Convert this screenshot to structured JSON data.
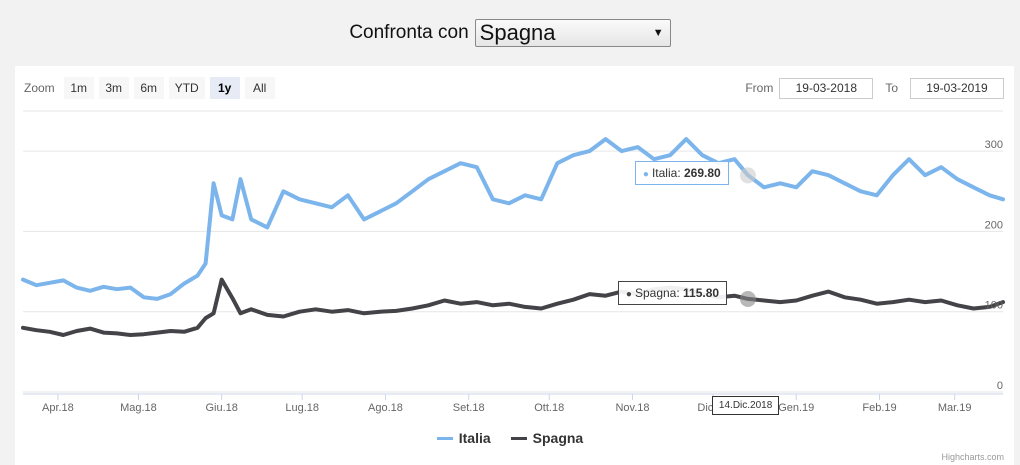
{
  "compare": {
    "label": "Confronta con",
    "selected": "Spagna"
  },
  "zoom": {
    "label": "Zoom",
    "buttons": [
      "1m",
      "3m",
      "6m",
      "YTD",
      "1y",
      "All"
    ],
    "active": "1y"
  },
  "range": {
    "from_label": "From",
    "from_value": "19-03-2018",
    "to_label": "To",
    "to_value": "19-03-2019"
  },
  "colors": {
    "italia": "#7cb5ec",
    "spagna": "#434348",
    "grid": "#e6e6e6",
    "axis": "#ccd6eb"
  },
  "tooltip": {
    "italia": {
      "name": "Italia",
      "value": "269.80"
    },
    "spagna": {
      "name": "Spagna",
      "value": "115.80"
    },
    "date": "14.Dic.2018",
    "date_x": "2018-12-14"
  },
  "credits": "Highcharts.com",
  "chart_data": {
    "type": "line",
    "x_start": "2018-03-19",
    "x_end": "2019-03-19",
    "ylim": [
      0,
      350
    ],
    "y_ticks": [
      0,
      100,
      200,
      300
    ],
    "x_ticks": [
      {
        "label": "Apr.18",
        "date": "2018-04-01"
      },
      {
        "label": "Mag.18",
        "date": "2018-05-01"
      },
      {
        "label": "Giu.18",
        "date": "2018-06-01"
      },
      {
        "label": "Lug.18",
        "date": "2018-07-01"
      },
      {
        "label": "Ago.18",
        "date": "2018-08-01"
      },
      {
        "label": "Set.18",
        "date": "2018-09-01"
      },
      {
        "label": "Ott.18",
        "date": "2018-10-01"
      },
      {
        "label": "Nov.18",
        "date": "2018-11-01"
      },
      {
        "label": "Dic.18",
        "date": "2018-12-01"
      },
      {
        "label": "Gen.19",
        "date": "2019-01-01"
      },
      {
        "label": "Feb.19",
        "date": "2019-02-01"
      },
      {
        "label": "Mar.19",
        "date": "2019-03-01"
      }
    ],
    "grid": true,
    "legend": "bottom-center",
    "series": [
      {
        "name": "Italia",
        "points": [
          [
            "2018-03-19",
            140
          ],
          [
            "2018-03-24",
            133
          ],
          [
            "2018-03-29",
            136
          ],
          [
            "2018-04-03",
            139
          ],
          [
            "2018-04-08",
            130
          ],
          [
            "2018-04-13",
            126
          ],
          [
            "2018-04-18",
            131
          ],
          [
            "2018-04-23",
            128
          ],
          [
            "2018-04-28",
            130
          ],
          [
            "2018-05-03",
            118
          ],
          [
            "2018-05-08",
            116
          ],
          [
            "2018-05-13",
            122
          ],
          [
            "2018-05-18",
            135
          ],
          [
            "2018-05-23",
            145
          ],
          [
            "2018-05-26",
            160
          ],
          [
            "2018-05-29",
            260
          ],
          [
            "2018-06-01",
            220
          ],
          [
            "2018-06-05",
            215
          ],
          [
            "2018-06-08",
            265
          ],
          [
            "2018-06-12",
            215
          ],
          [
            "2018-06-18",
            205
          ],
          [
            "2018-06-24",
            250
          ],
          [
            "2018-06-30",
            240
          ],
          [
            "2018-07-06",
            235
          ],
          [
            "2018-07-12",
            230
          ],
          [
            "2018-07-18",
            245
          ],
          [
            "2018-07-24",
            215
          ],
          [
            "2018-07-30",
            225
          ],
          [
            "2018-08-05",
            235
          ],
          [
            "2018-08-11",
            250
          ],
          [
            "2018-08-17",
            265
          ],
          [
            "2018-08-23",
            275
          ],
          [
            "2018-08-29",
            285
          ],
          [
            "2018-09-04",
            280
          ],
          [
            "2018-09-10",
            240
          ],
          [
            "2018-09-16",
            235
          ],
          [
            "2018-09-22",
            245
          ],
          [
            "2018-09-28",
            240
          ],
          [
            "2018-10-04",
            285
          ],
          [
            "2018-10-10",
            295
          ],
          [
            "2018-10-16",
            300
          ],
          [
            "2018-10-22",
            315
          ],
          [
            "2018-10-28",
            300
          ],
          [
            "2018-11-03",
            305
          ],
          [
            "2018-11-09",
            290
          ],
          [
            "2018-11-15",
            295
          ],
          [
            "2018-11-21",
            315
          ],
          [
            "2018-11-27",
            295
          ],
          [
            "2018-12-03",
            285
          ],
          [
            "2018-12-09",
            290
          ],
          [
            "2018-12-14",
            270
          ],
          [
            "2018-12-20",
            255
          ],
          [
            "2018-12-26",
            260
          ],
          [
            "2019-01-01",
            255
          ],
          [
            "2019-01-07",
            275
          ],
          [
            "2019-01-13",
            270
          ],
          [
            "2019-01-19",
            260
          ],
          [
            "2019-01-25",
            250
          ],
          [
            "2019-01-31",
            245
          ],
          [
            "2019-02-06",
            270
          ],
          [
            "2019-02-12",
            290
          ],
          [
            "2019-02-18",
            270
          ],
          [
            "2019-02-24",
            280
          ],
          [
            "2019-03-02",
            265
          ],
          [
            "2019-03-08",
            255
          ],
          [
            "2019-03-14",
            245
          ],
          [
            "2019-03-19",
            240
          ]
        ]
      },
      {
        "name": "Spagna",
        "points": [
          [
            "2018-03-19",
            80
          ],
          [
            "2018-03-24",
            77
          ],
          [
            "2018-03-29",
            75
          ],
          [
            "2018-04-03",
            71
          ],
          [
            "2018-04-08",
            76
          ],
          [
            "2018-04-13",
            79
          ],
          [
            "2018-04-18",
            74
          ],
          [
            "2018-04-23",
            73
          ],
          [
            "2018-04-28",
            71
          ],
          [
            "2018-05-03",
            72
          ],
          [
            "2018-05-08",
            74
          ],
          [
            "2018-05-13",
            76
          ],
          [
            "2018-05-18",
            75
          ],
          [
            "2018-05-23",
            80
          ],
          [
            "2018-05-26",
            92
          ],
          [
            "2018-05-29",
            98
          ],
          [
            "2018-06-01",
            140
          ],
          [
            "2018-06-05",
            117
          ],
          [
            "2018-06-08",
            98
          ],
          [
            "2018-06-12",
            103
          ],
          [
            "2018-06-18",
            96
          ],
          [
            "2018-06-24",
            94
          ],
          [
            "2018-06-30",
            100
          ],
          [
            "2018-07-06",
            103
          ],
          [
            "2018-07-12",
            100
          ],
          [
            "2018-07-18",
            102
          ],
          [
            "2018-07-24",
            98
          ],
          [
            "2018-07-30",
            100
          ],
          [
            "2018-08-05",
            101
          ],
          [
            "2018-08-11",
            104
          ],
          [
            "2018-08-17",
            108
          ],
          [
            "2018-08-23",
            114
          ],
          [
            "2018-08-29",
            110
          ],
          [
            "2018-09-04",
            112
          ],
          [
            "2018-09-10",
            108
          ],
          [
            "2018-09-16",
            110
          ],
          [
            "2018-09-22",
            106
          ],
          [
            "2018-09-28",
            104
          ],
          [
            "2018-10-04",
            110
          ],
          [
            "2018-10-10",
            115
          ],
          [
            "2018-10-16",
            122
          ],
          [
            "2018-10-22",
            120
          ],
          [
            "2018-10-28",
            125
          ],
          [
            "2018-11-03",
            122
          ],
          [
            "2018-11-09",
            128
          ],
          [
            "2018-11-15",
            130
          ],
          [
            "2018-11-21",
            128
          ],
          [
            "2018-11-27",
            122
          ],
          [
            "2018-12-03",
            118
          ],
          [
            "2018-12-09",
            120
          ],
          [
            "2018-12-14",
            116
          ],
          [
            "2018-12-20",
            114
          ],
          [
            "2018-12-26",
            112
          ],
          [
            "2019-01-01",
            114
          ],
          [
            "2019-01-07",
            120
          ],
          [
            "2019-01-13",
            125
          ],
          [
            "2019-01-19",
            118
          ],
          [
            "2019-01-25",
            115
          ],
          [
            "2019-01-31",
            110
          ],
          [
            "2019-02-06",
            112
          ],
          [
            "2019-02-12",
            115
          ],
          [
            "2019-02-18",
            112
          ],
          [
            "2019-02-24",
            114
          ],
          [
            "2019-03-02",
            108
          ],
          [
            "2019-03-08",
            104
          ],
          [
            "2019-03-14",
            106
          ],
          [
            "2019-03-19",
            112
          ]
        ]
      }
    ]
  }
}
